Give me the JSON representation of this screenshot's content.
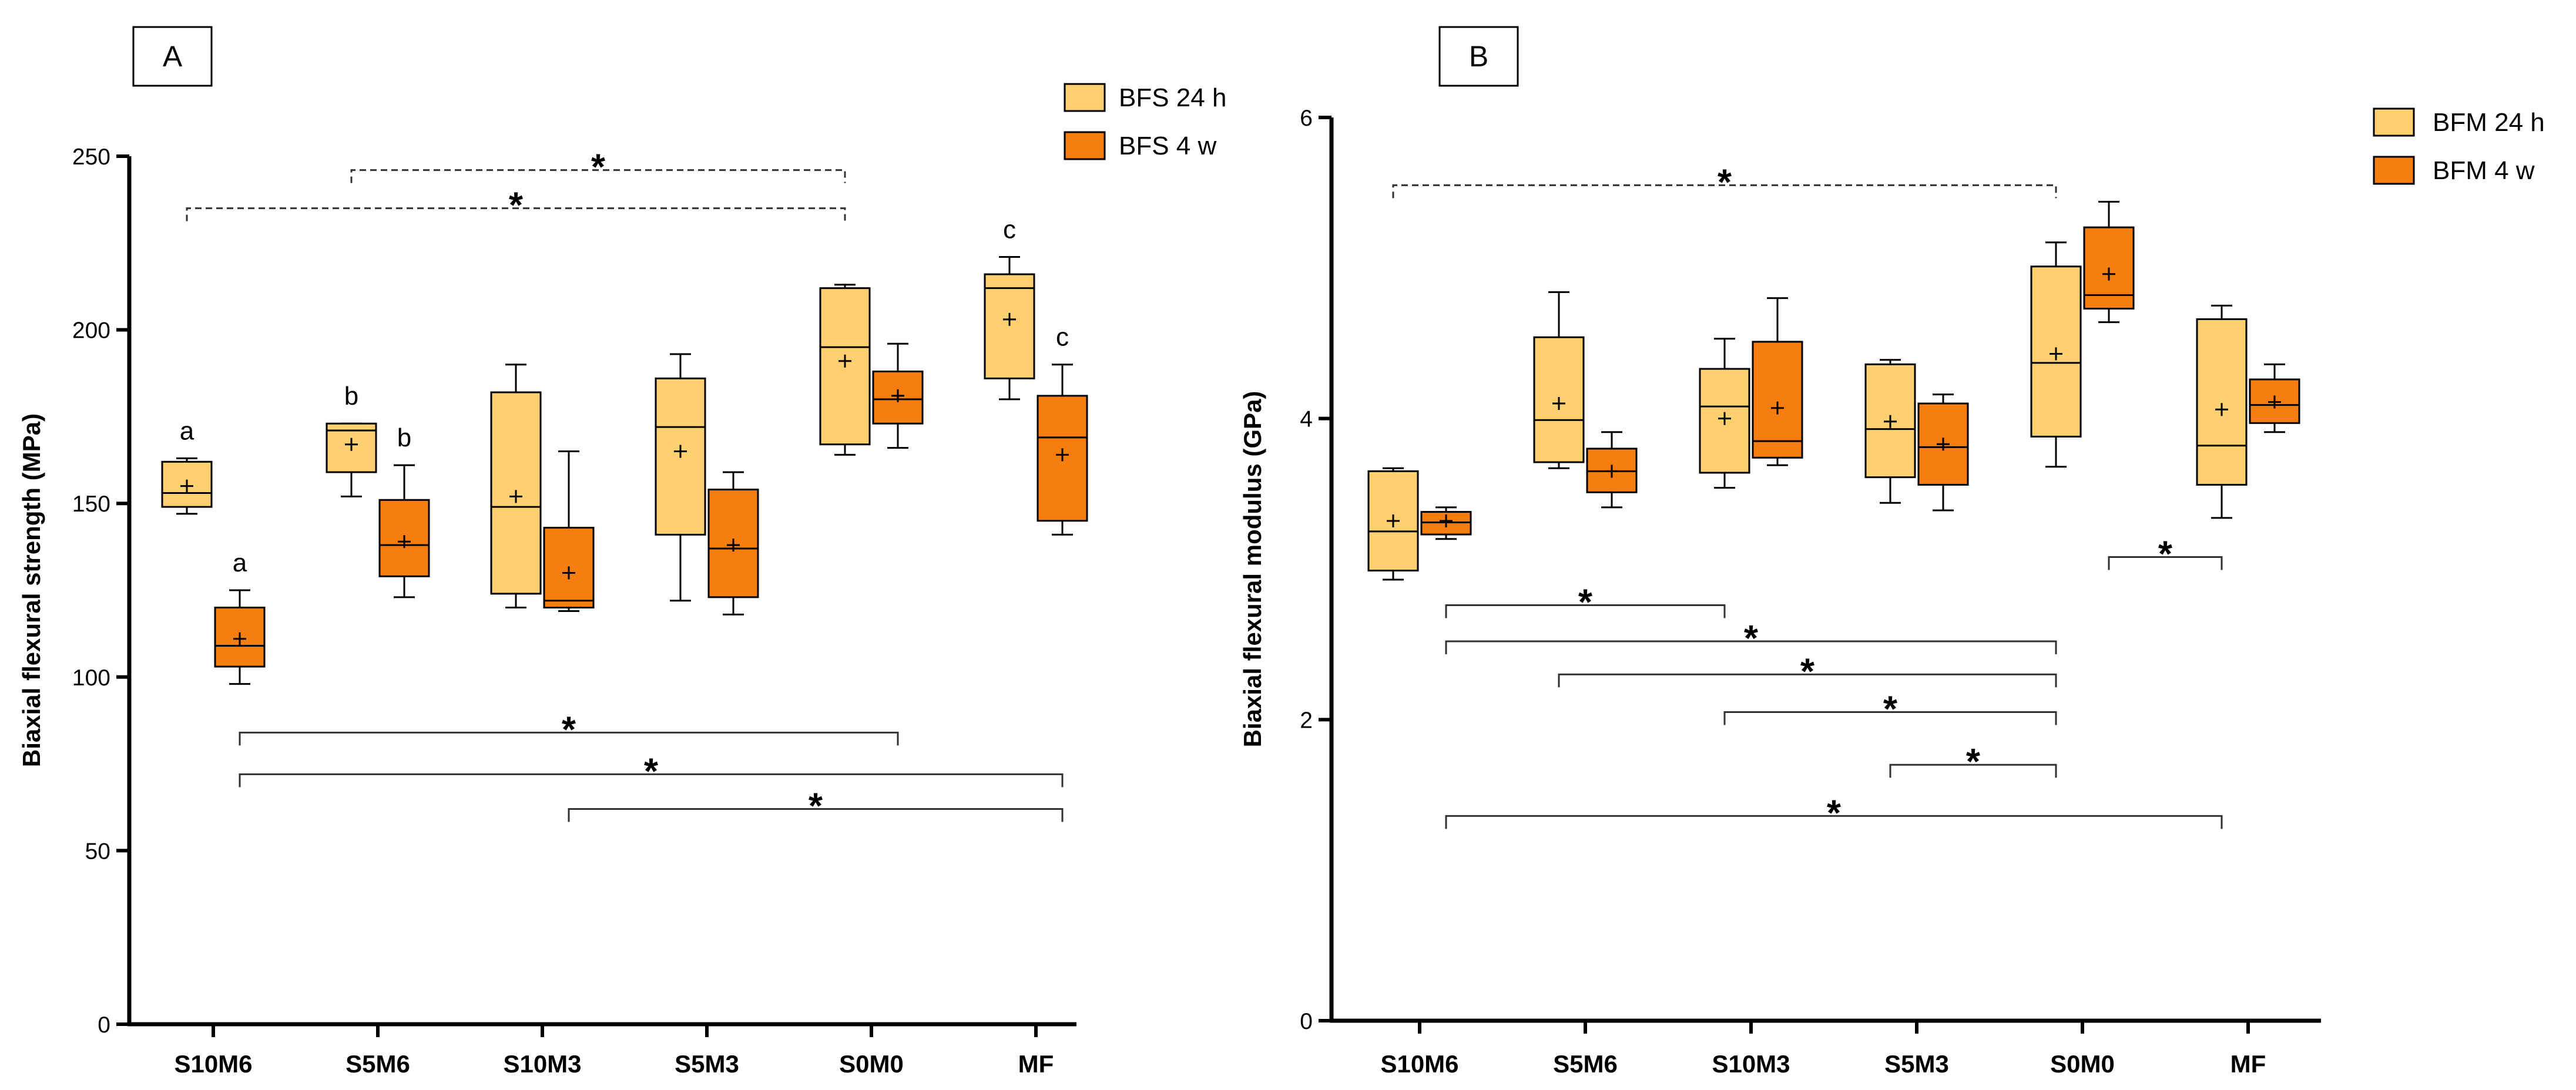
{
  "chart_data": [
    {
      "panel_label": "A",
      "type": "boxplot",
      "ylabel": "Biaxial flexural strength (MPa)",
      "xlabel": "",
      "ylim": [
        0,
        250
      ],
      "yticks": [
        0,
        50,
        100,
        150,
        200,
        250
      ],
      "categories": [
        "S10M6",
        "S5M6",
        "S10M3",
        "S5M3",
        "S0M0",
        "MF"
      ],
      "colors": {
        "BFS 24 h": "#FED06F",
        "BFS 4 w": "#F67D10"
      },
      "legend": [
        "BFS 24 h",
        "BFS 4 w"
      ],
      "legend_position": "top-right",
      "series": [
        {
          "name": "BFS 24 h",
          "boxes": [
            {
              "min": 147,
              "q1": 149,
              "median": 153,
              "q3": 162,
              "max": 163,
              "mean": 155
            },
            {
              "min": 152,
              "q1": 159,
              "median": 171,
              "q3": 173,
              "max": 173,
              "mean": 167
            },
            {
              "min": 120,
              "q1": 124,
              "median": 149,
              "q3": 182,
              "max": 190,
              "mean": 152
            },
            {
              "min": 122,
              "q1": 141,
              "median": 172,
              "q3": 186,
              "max": 193,
              "mean": 165
            },
            {
              "min": 164,
              "q1": 167,
              "median": 195,
              "q3": 212,
              "max": 213,
              "mean": 191
            },
            {
              "min": 180,
              "q1": 186,
              "median": 212,
              "q3": 216,
              "max": 221,
              "mean": 203
            }
          ],
          "letters": [
            "a",
            "b",
            "",
            "",
            "",
            "c"
          ]
        },
        {
          "name": "BFS 4 w",
          "boxes": [
            {
              "min": 98,
              "q1": 103,
              "median": 109,
              "q3": 120,
              "max": 125,
              "mean": 111
            },
            {
              "min": 123,
              "q1": 129,
              "median": 138,
              "q3": 151,
              "max": 161,
              "mean": 139
            },
            {
              "min": 119,
              "q1": 120,
              "median": 122,
              "q3": 143,
              "max": 165,
              "mean": 130
            },
            {
              "min": 118,
              "q1": 123,
              "median": 137,
              "q3": 154,
              "max": 159,
              "mean": 138
            },
            {
              "min": 166,
              "q1": 173,
              "median": 180,
              "q3": 188,
              "max": 196,
              "mean": 181
            },
            {
              "min": 141,
              "q1": 145,
              "median": 169,
              "q3": 181,
              "max": 190,
              "mean": 164
            }
          ],
          "letters": [
            "a",
            "b",
            "",
            "",
            "",
            "c"
          ]
        }
      ],
      "significance_top": [
        {
          "from": "S5M6",
          "to": "S0M0",
          "series_from": "BFS 24 h",
          "series_to": "BFS 24 h",
          "y": 246,
          "label": "*",
          "style": "dashed"
        },
        {
          "from": "S10M6",
          "to": "S0M0",
          "series_from": "BFS 24 h",
          "series_to": "BFS 24 h",
          "y": 235,
          "label": "*",
          "style": "dashed"
        }
      ],
      "significance_bottom": [
        {
          "from": "S10M6",
          "to": "S0M0",
          "series_from": "BFS 4 w",
          "series_to": "BFS 4 w",
          "y": 84,
          "label": "*",
          "style": "solid"
        },
        {
          "from": "S10M6",
          "to": "MF",
          "series_from": "BFS 4 w",
          "series_to": "BFS 4 w",
          "y": 72,
          "label": "*",
          "style": "solid"
        },
        {
          "from": "S10M3",
          "to": "MF",
          "series_from": "BFS 4 w",
          "series_to": "BFS 4 w",
          "y": 62,
          "label": "*",
          "style": "solid"
        }
      ]
    },
    {
      "panel_label": "B",
      "type": "boxplot",
      "ylabel": "Biaxial flexural modulus (GPa)",
      "xlabel": "",
      "ylim": [
        0,
        6
      ],
      "yticks": [
        0,
        2,
        4,
        6
      ],
      "categories": [
        "S10M6",
        "S5M6",
        "S10M3",
        "S5M3",
        "S0M0",
        "MF"
      ],
      "colors": {
        "BFM 24 h": "#FED06F",
        "BFM 4 w": "#F67D10"
      },
      "legend": [
        "BFM 24 h",
        "BFM 4 w"
      ],
      "legend_position": "top-right",
      "series": [
        {
          "name": "BFM 24 h",
          "boxes": [
            {
              "min": 2.93,
              "q1": 2.99,
              "median": 3.25,
              "q3": 3.65,
              "max": 3.67,
              "mean": 3.32
            },
            {
              "min": 3.67,
              "q1": 3.71,
              "median": 3.99,
              "q3": 4.54,
              "max": 4.84,
              "mean": 4.1
            },
            {
              "min": 3.54,
              "q1": 3.64,
              "median": 4.08,
              "q3": 4.33,
              "max": 4.53,
              "mean": 4.0
            },
            {
              "min": 3.44,
              "q1": 3.61,
              "median": 3.93,
              "q3": 4.36,
              "max": 4.39,
              "mean": 3.98
            },
            {
              "min": 3.68,
              "q1": 3.88,
              "median": 4.37,
              "q3": 5.01,
              "max": 5.17,
              "mean": 4.43
            },
            {
              "min": 3.34,
              "q1": 3.56,
              "median": 3.82,
              "q3": 4.66,
              "max": 4.75,
              "mean": 4.06
            }
          ]
        },
        {
          "name": "BFM 4 w",
          "boxes": [
            {
              "min": 3.2,
              "q1": 3.23,
              "median": 3.31,
              "q3": 3.38,
              "max": 3.41,
              "mean": 3.32
            },
            {
              "min": 3.41,
              "q1": 3.51,
              "median": 3.65,
              "q3": 3.8,
              "max": 3.91,
              "mean": 3.65
            },
            {
              "min": 3.69,
              "q1": 3.74,
              "median": 3.85,
              "q3": 4.51,
              "max": 4.8,
              "mean": 4.07
            },
            {
              "min": 3.39,
              "q1": 3.56,
              "median": 3.81,
              "q3": 4.1,
              "max": 4.16,
              "mean": 3.83
            },
            {
              "min": 4.64,
              "q1": 4.73,
              "median": 4.82,
              "q3": 5.27,
              "max": 5.44,
              "mean": 4.96
            },
            {
              "min": 3.91,
              "q1": 3.97,
              "median": 4.09,
              "q3": 4.26,
              "max": 4.36,
              "mean": 4.11
            }
          ]
        }
      ],
      "significance_top": [
        {
          "from": "S10M6",
          "to": "S0M0",
          "series_from": "BFM 24 h",
          "series_to": "BFM 24 h",
          "y": 5.55,
          "label": "*",
          "style": "dashed"
        }
      ],
      "significance_bottom": [
        {
          "from": "S0M0",
          "to": "MF",
          "series_from": "BFM 4 w",
          "series_to": "BFM 24 h",
          "y": 3.08,
          "label": "*",
          "style": "solid"
        },
        {
          "from": "S10M6",
          "to": "S10M3",
          "series_from": "BFM 4 w",
          "series_to": "BFM 24 h",
          "y": 2.76,
          "label": "*",
          "style": "solid"
        },
        {
          "from": "S10M6",
          "to": "S0M0",
          "series_from": "BFM 4 w",
          "series_to": "BFM 24 h",
          "y": 2.52,
          "label": "*",
          "style": "solid"
        },
        {
          "from": "S5M6",
          "to": "S0M0",
          "series_from": "BFM 24 h",
          "series_to": "BFM 24 h",
          "y": 2.3,
          "label": "*",
          "style": "solid"
        },
        {
          "from": "S10M3",
          "to": "S0M0",
          "series_from": "BFM 24 h",
          "series_to": "BFM 24 h",
          "y": 2.05,
          "label": "*",
          "style": "solid"
        },
        {
          "from": "S5M3",
          "to": "S0M0",
          "series_from": "BFM 24 h",
          "series_to": "BFM 24 h",
          "y": 1.7,
          "label": "*",
          "style": "solid"
        },
        {
          "from": "S10M6",
          "to": "MF",
          "series_from": "BFM 4 w",
          "series_to": "BFM 24 h",
          "y": 1.36,
          "label": "*",
          "style": "solid"
        }
      ]
    }
  ]
}
